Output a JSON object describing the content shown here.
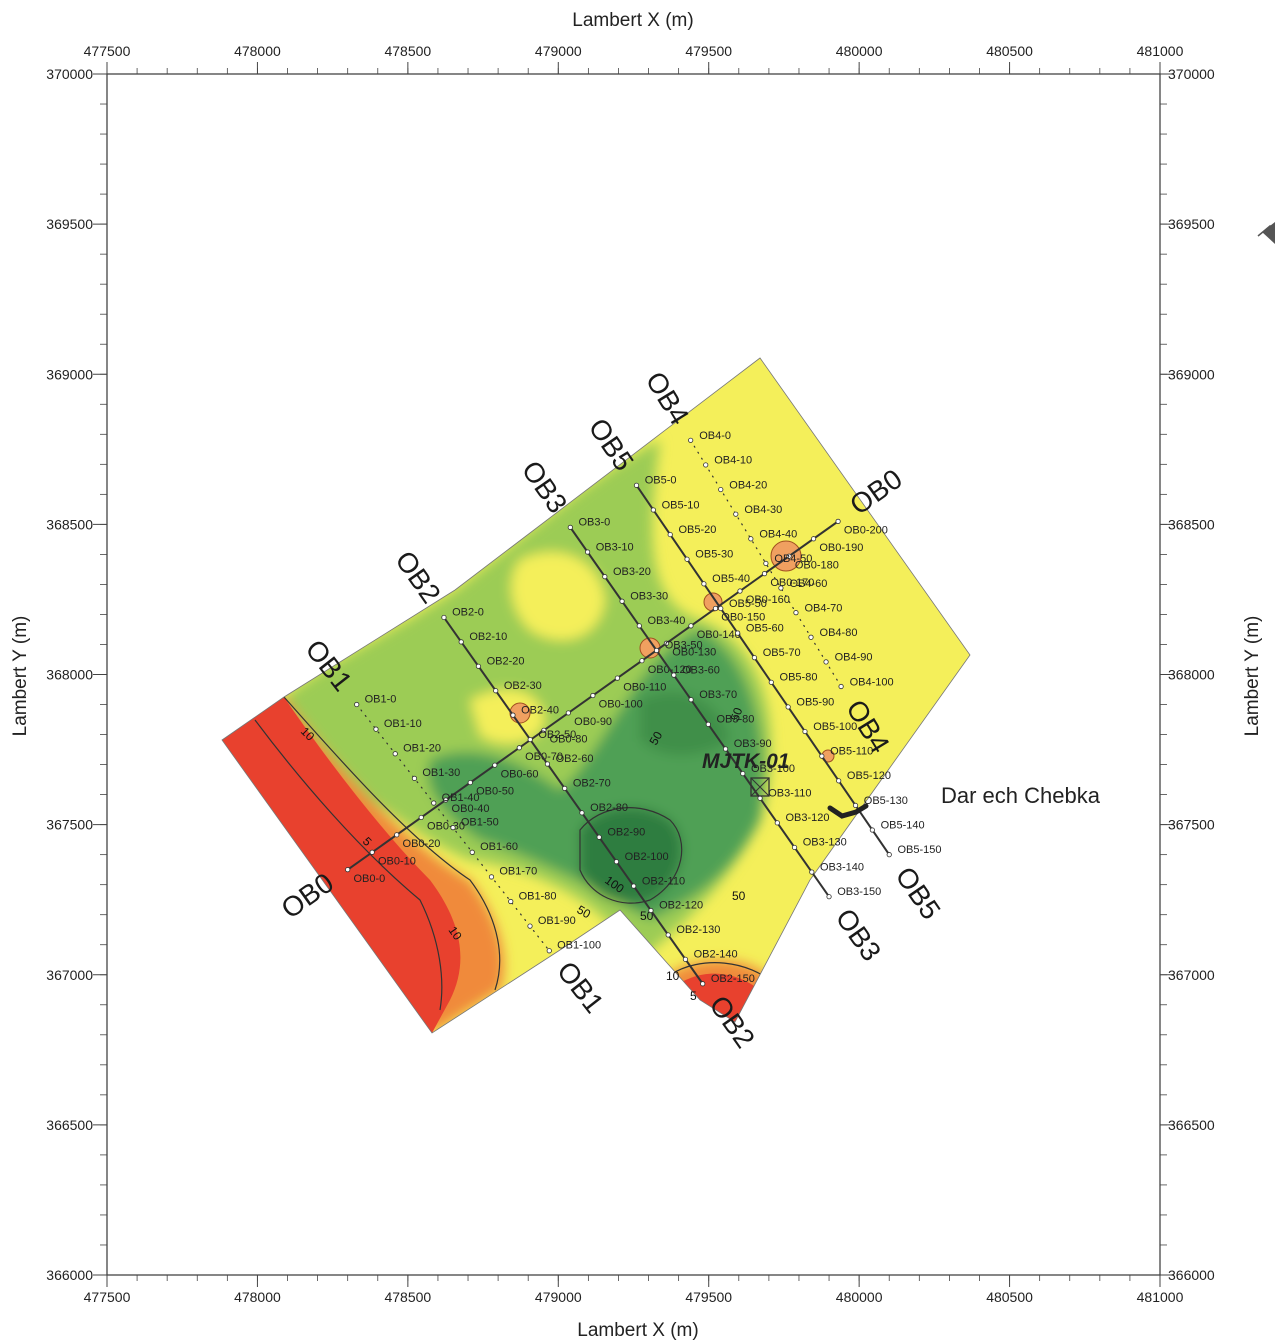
{
  "axes": {
    "x_title_top": "Lambert X (m)",
    "x_title_bottom": "Lambert X (m)",
    "y_title_left": "Lambert Y (m)",
    "y_title_right": "Lambert Y (m)",
    "x_ticks": [
      "477500",
      "478000",
      "478500",
      "479000",
      "479500",
      "480000",
      "480500",
      "481000"
    ],
    "y_ticks": [
      "370000",
      "369500",
      "369000",
      "368500",
      "368000",
      "367500",
      "367000",
      "366500",
      "366000"
    ],
    "xlim": [
      477500,
      481000
    ],
    "ylim": [
      366000,
      370000
    ]
  },
  "colors": {
    "red": "#e8412e",
    "orange": "#f08a3a",
    "yellow": "#f4ef5a",
    "light_green": "#9ccc55",
    "green": "#4fa055",
    "dark_green": "#2e7d3f",
    "frame": "#444444"
  },
  "map": {
    "well_name": "MJTK-01",
    "village_name": "Dar ech Chebka"
  },
  "profiles": [
    {
      "name": "OB0",
      "start_label": "OB0",
      "end_label": "OB0",
      "start": [
        478300,
        367350
      ],
      "end": [
        479930,
        368510
      ],
      "stations": [
        "OB0-0",
        "OB0-10",
        "OB0-20",
        "OB0-30",
        "OB0-40",
        "OB0-50",
        "OB0-60",
        "OB0-70",
        "OB0-80",
        "OB0-90",
        "OB0-100",
        "OB0-110",
        "OB0-120",
        "OB0-130",
        "OB0-140",
        "OB0-150",
        "OB0-160",
        "OB0-170",
        "OB0-180",
        "OB0-190",
        "OB0-200"
      ]
    },
    {
      "name": "OB1",
      "start_label": "OB1",
      "end_label": "OB1",
      "start": [
        478330,
        367900
      ],
      "end": [
        478970,
        367080
      ],
      "stations": [
        "OB1-0",
        "OB1-10",
        "OB1-20",
        "OB1-30",
        "OB1-40",
        "OB1-50",
        "OB1-60",
        "OB1-70",
        "OB1-80",
        "OB1-90",
        "OB1-100"
      ]
    },
    {
      "name": "OB2",
      "start_label": "OB2",
      "end_label": "OB2",
      "start": [
        478620,
        368190
      ],
      "end": [
        479480,
        366970
      ],
      "stations": [
        "OB2-0",
        "OB2-10",
        "OB2-20",
        "OB2-30",
        "OB2-40",
        "OB2-50",
        "OB2-60",
        "OB2-70",
        "OB2-80",
        "OB2-90",
        "OB2-100",
        "OB2-110",
        "OB2-120",
        "OB2-130",
        "OB2-140",
        "OB2-150"
      ]
    },
    {
      "name": "OB3",
      "start_label": "OB3",
      "end_label": "OB3",
      "start": [
        479040,
        368490
      ],
      "end": [
        479900,
        367260
      ],
      "stations": [
        "OB3-0",
        "OB3-10",
        "OB3-20",
        "OB3-30",
        "OB3-40",
        "OB3-50",
        "OB3-60",
        "OB3-70",
        "OB3-80",
        "OB3-90",
        "OB3-100",
        "OB3-110",
        "OB3-120",
        "OB3-130",
        "OB3-140",
        "OB3-150"
      ]
    },
    {
      "name": "OB5",
      "start_label": "OB5",
      "end_label": "OB5",
      "start": [
        479260,
        368630
      ],
      "end": [
        480100,
        367400
      ],
      "stations": [
        "OB5-0",
        "OB5-10",
        "OB5-20",
        "OB5-30",
        "OB5-40",
        "OB5-50",
        "OB5-60",
        "OB5-70",
        "OB5-80",
        "OB5-90",
        "OB5-100",
        "OB5-110",
        "OB5-120",
        "OB5-130",
        "OB5-140",
        "OB5-150"
      ]
    },
    {
      "name": "OB4",
      "start_label": "OB4",
      "end_label": "OB4",
      "start": [
        479440,
        368780
      ],
      "end": [
        479940,
        367960
      ],
      "stations": [
        "OB4-0",
        "OB4-10",
        "OB4-20",
        "OB4-30",
        "OB4-40",
        "OB4-50",
        "OB4-60",
        "OB4-70",
        "OB4-80",
        "OB4-90",
        "OB4-100"
      ]
    }
  ],
  "contour_labels": [
    "10",
    "5",
    "10",
    "50",
    "100",
    "50",
    "50",
    "10",
    "5",
    "50",
    "50"
  ]
}
